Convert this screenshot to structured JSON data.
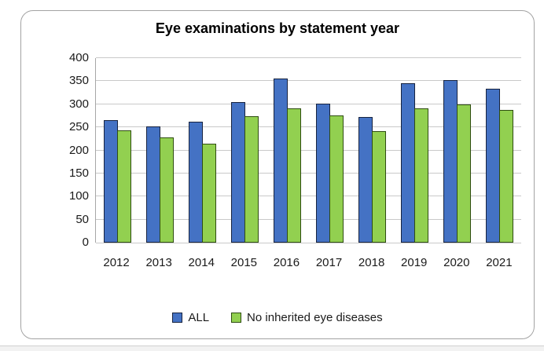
{
  "chart_data": {
    "type": "bar",
    "title": "Eye examinations by statement year",
    "categories": [
      "2012",
      "2013",
      "2014",
      "2015",
      "2016",
      "2017",
      "2018",
      "2019",
      "2020",
      "2021"
    ],
    "series": [
      {
        "name": "ALL",
        "color": "#4472C4",
        "border": "#17233f",
        "values": [
          265,
          252,
          262,
          304,
          356,
          301,
          273,
          345,
          352,
          333
        ]
      },
      {
        "name": "No inherited eye diseases",
        "color": "#92D050",
        "border": "#2f4d12",
        "values": [
          243,
          228,
          215,
          274,
          291,
          276,
          242,
          291,
          300,
          288
        ]
      }
    ],
    "xlabel": "",
    "ylabel": "",
    "ylim": [
      0,
      400
    ],
    "yticks": [
      0,
      50,
      100,
      150,
      200,
      250,
      300,
      350,
      400
    ],
    "grid": "horizontal",
    "legend_position": "bottom"
  },
  "style_colors": {
    "gridline": "#c9c9c9",
    "axis_line": "#a6a6a6",
    "frame_border": "#a3a3a3",
    "text": "#1a1a1a",
    "background": "#ffffff",
    "footer_strip": "#f2f2f2",
    "footer_line": "#cfcfcf"
  }
}
